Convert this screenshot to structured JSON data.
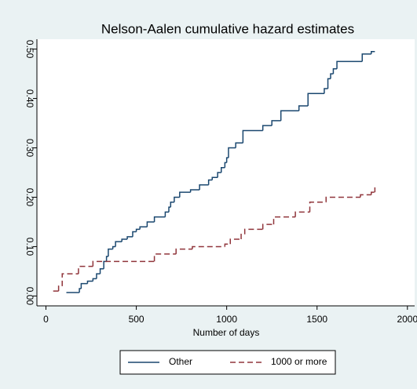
{
  "chart_data": {
    "type": "step",
    "title": "Nelson-Aalen cumulative hazard estimates",
    "x_label": "Number of days",
    "xlim": [
      -50,
      2040
    ],
    "ylim": [
      -0.02,
      0.52
    ],
    "xticks": [
      0,
      500,
      1000,
      1500,
      2000
    ],
    "yticks": [
      {
        "value": 0,
        "label": "0.00"
      },
      {
        "value": 0.1,
        "label": "0.10"
      },
      {
        "value": 0.2,
        "label": "0.20"
      },
      {
        "value": 0.3,
        "label": "0.30"
      },
      {
        "value": 0.4,
        "label": "0.40"
      },
      {
        "value": 0.5,
        "label": "0.50"
      }
    ],
    "series": [
      {
        "name": "Other",
        "color": "#1a476f",
        "dash": "solid",
        "x": [
          113,
          180,
          185,
          195,
          230,
          260,
          280,
          300,
          320,
          335,
          345,
          370,
          385,
          420,
          450,
          480,
          500,
          520,
          560,
          600,
          660,
          680,
          690,
          710,
          740,
          800,
          850,
          900,
          920,
          950,
          970,
          990,
          1000,
          1010,
          1050,
          1090,
          1200,
          1250,
          1300,
          1400,
          1450,
          1540,
          1560,
          1575,
          1590,
          1610,
          1750,
          1800,
          1820
        ],
        "values": [
          0.007,
          0.007,
          0.015,
          0.025,
          0.03,
          0.035,
          0.045,
          0.055,
          0.07,
          0.08,
          0.095,
          0.1,
          0.11,
          0.115,
          0.12,
          0.13,
          0.135,
          0.14,
          0.15,
          0.16,
          0.17,
          0.18,
          0.19,
          0.2,
          0.21,
          0.215,
          0.225,
          0.235,
          0.24,
          0.25,
          0.26,
          0.27,
          0.28,
          0.3,
          0.31,
          0.335,
          0.345,
          0.355,
          0.375,
          0.385,
          0.41,
          0.42,
          0.44,
          0.45,
          0.46,
          0.475,
          0.49,
          0.495,
          0.495
        ]
      },
      {
        "name": "1000 or more",
        "color": "#90353b",
        "dash": "dashed",
        "x": [
          40,
          70,
          90,
          180,
          260,
          600,
          720,
          810,
          990,
          1020,
          1080,
          1100,
          1200,
          1260,
          1380,
          1460,
          1550,
          1740,
          1800,
          1820
        ],
        "values": [
          0.01,
          0.02,
          0.045,
          0.06,
          0.07,
          0.085,
          0.095,
          0.1,
          0.105,
          0.115,
          0.125,
          0.135,
          0.145,
          0.16,
          0.17,
          0.19,
          0.2,
          0.205,
          0.21,
          0.22
        ]
      }
    ]
  }
}
